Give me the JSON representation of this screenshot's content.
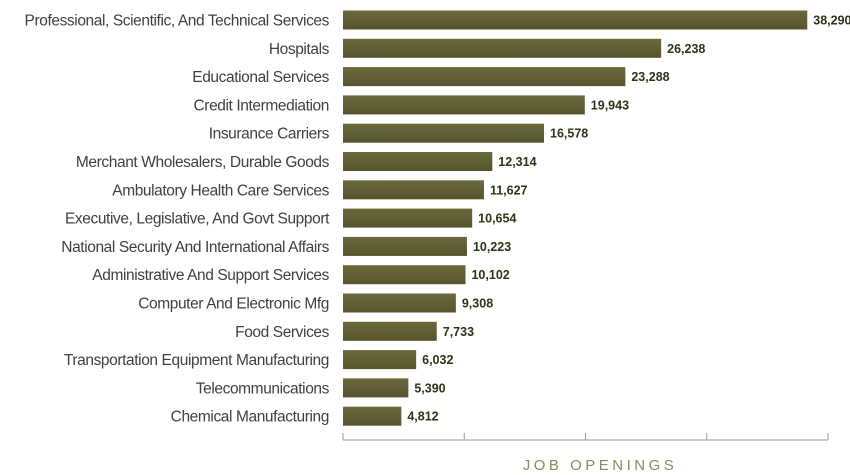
{
  "colors": {
    "bar": "#55542d",
    "bar_highlight": "#6b6a3c",
    "axis": "#9a9a9a",
    "category_text": "#3f3f3f",
    "value_text": "#2f3318",
    "axis_title": "#8c8a5e"
  },
  "chart_data": {
    "type": "bar",
    "orientation": "horizontal",
    "title": "",
    "xlabel": "JOB OPENINGS",
    "ylabel": "",
    "xlim": [
      0,
      40000
    ],
    "tick_values": [
      0,
      10000,
      20000,
      30000,
      40000
    ],
    "tick_labels_shown": false,
    "grid": false,
    "legend": "none",
    "categories": [
      "Professional, Scientific, And Technical Services",
      "Hospitals",
      "Educational Services",
      "Credit Intermediation",
      "Insurance Carriers",
      "Merchant Wholesalers, Durable Goods",
      "Ambulatory Health Care Services",
      "Executive, Legislative, And Govt Support",
      "National Security And International Affairs",
      "Administrative And Support Services",
      "Computer And Electronic Mfg",
      "Food Services",
      "Transportation Equipment Manufacturing",
      "Telecommunications",
      "Chemical Manufacturing"
    ],
    "values": [
      38290,
      26238,
      23288,
      19943,
      16578,
      12314,
      11627,
      10654,
      10223,
      10102,
      9308,
      7733,
      6032,
      5390,
      4812
    ],
    "value_labels": [
      "38,290",
      "26,238",
      "23,288",
      "19,943",
      "16,578",
      "12,314",
      "11,627",
      "10,654",
      "10,223",
      "10,102",
      "9,308",
      "7,733",
      "6,032",
      "5,390",
      "4,812"
    ]
  }
}
